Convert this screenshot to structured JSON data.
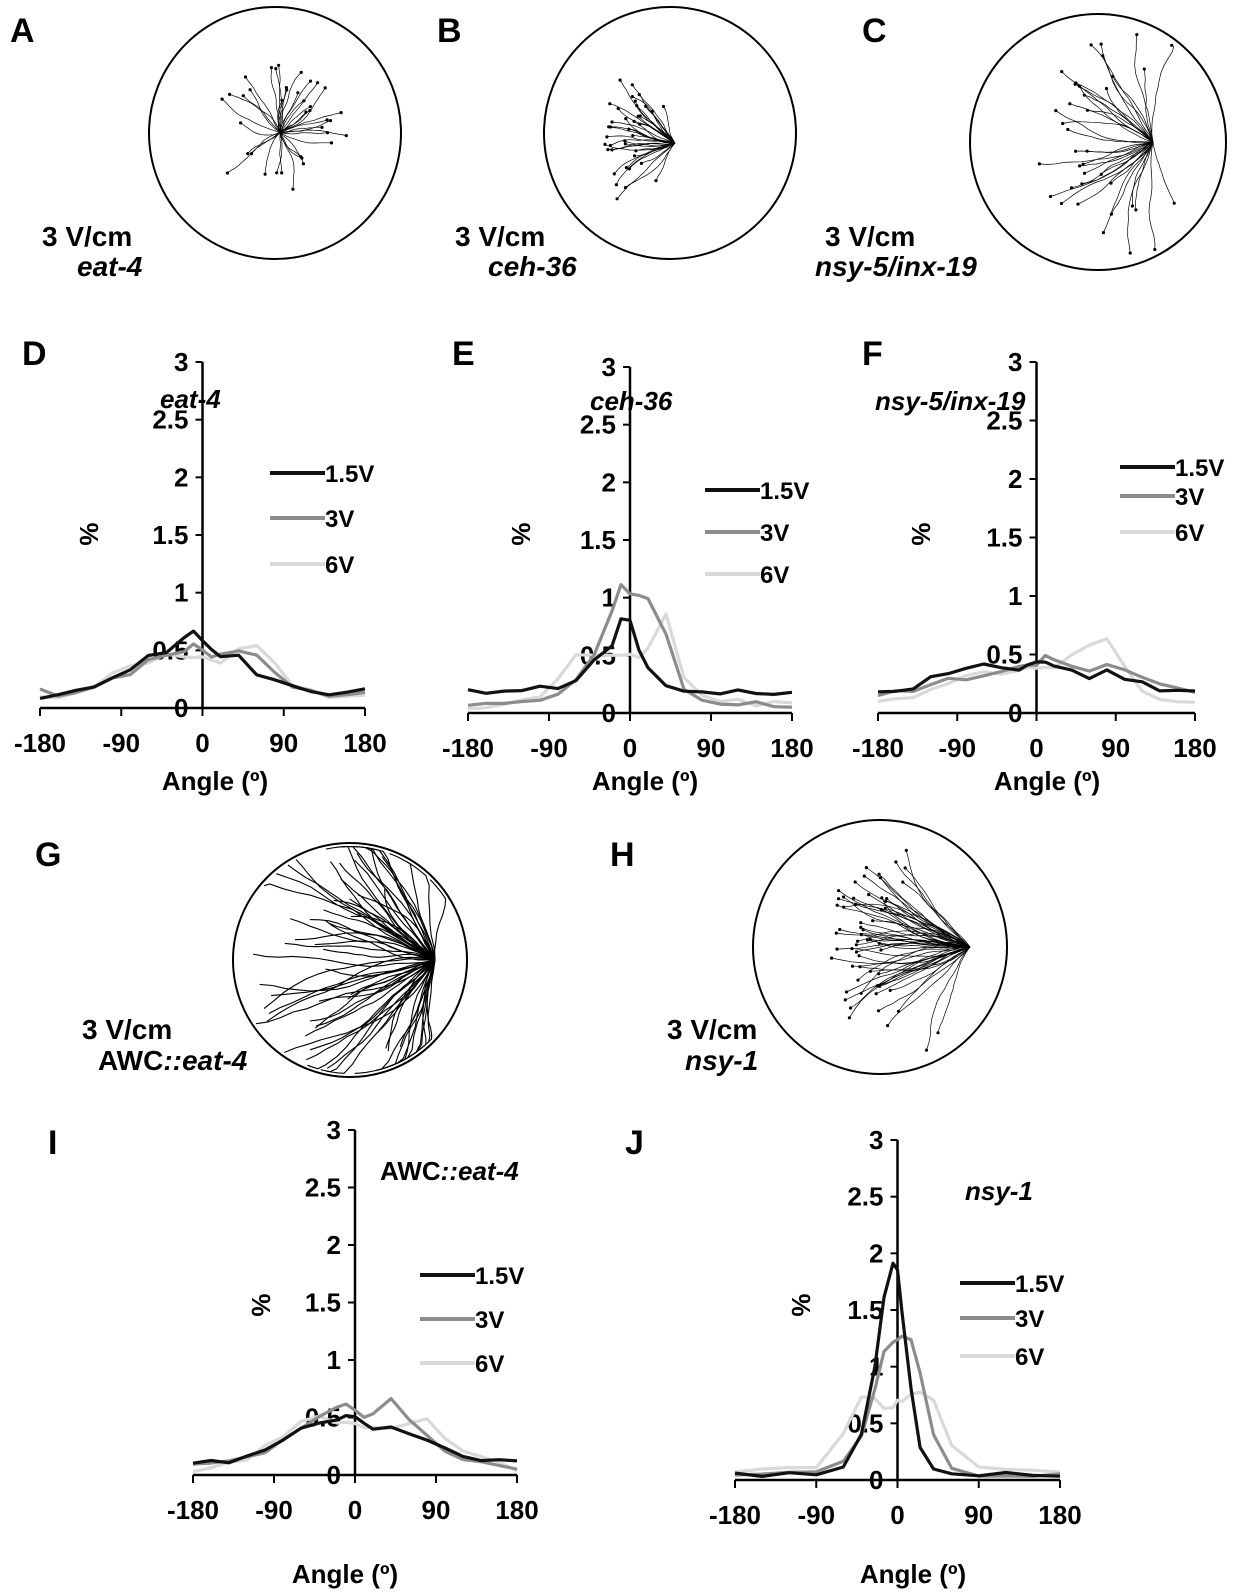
{
  "figure": {
    "panel_labels": [
      "A",
      "B",
      "C",
      "D",
      "E",
      "F",
      "G",
      "H",
      "I",
      "J"
    ],
    "track_panels": [
      {
        "label": "A",
        "field": "3 V/cm",
        "strain": "eat-4",
        "strain_prefix": ""
      },
      {
        "label": "B",
        "field": "3 V/cm",
        "strain": "ceh-36",
        "strain_prefix": ""
      },
      {
        "label": "C",
        "field": "3 V/cm",
        "strain": "nsy-5/inx-19",
        "strain_prefix": ""
      },
      {
        "label": "G",
        "field": "3 V/cm",
        "strain": "::eat-4",
        "strain_prefix": "AWC"
      },
      {
        "label": "H",
        "field": "3 V/cm",
        "strain": "nsy-1",
        "strain_prefix": ""
      }
    ]
  },
  "colors": {
    "1.5V": "#111111",
    "3V": "#8c8c8c",
    "6V": "#d9d9d9"
  },
  "chart_data": [
    {
      "panel": "D",
      "type": "line",
      "title": "eat-4",
      "title_prefix": "",
      "xlabel": "Angle (º)",
      "ylabel": "%",
      "xticks": [
        "-180",
        "-90",
        "0",
        "90",
        "180"
      ],
      "yticks": [
        "0",
        "0.5",
        "1",
        "1.5",
        "2",
        "2.5",
        "3"
      ],
      "xlim": [
        -180,
        180
      ],
      "ylim": [
        0,
        3
      ],
      "grid": false,
      "x": [
        -180,
        -160,
        -140,
        -120,
        -100,
        -80,
        -60,
        -40,
        -20,
        -10,
        0,
        10,
        20,
        40,
        60,
        80,
        100,
        120,
        140,
        160,
        180
      ],
      "series": [
        {
          "name": "1.5V",
          "values": [
            0.1,
            0.1,
            0.15,
            0.2,
            0.25,
            0.35,
            0.45,
            0.5,
            0.6,
            0.68,
            0.6,
            0.5,
            0.45,
            0.45,
            0.3,
            0.25,
            0.2,
            0.15,
            0.12,
            0.12,
            0.15
          ]
        },
        {
          "name": "3V",
          "values": [
            0.15,
            0.12,
            0.15,
            0.2,
            0.25,
            0.3,
            0.4,
            0.45,
            0.5,
            0.55,
            0.5,
            0.45,
            0.45,
            0.5,
            0.45,
            0.3,
            0.2,
            0.15,
            0.12,
            0.12,
            0.12
          ]
        },
        {
          "name": "6V",
          "values": [
            0.08,
            0.1,
            0.12,
            0.2,
            0.3,
            0.35,
            0.4,
            0.45,
            0.45,
            0.42,
            0.45,
            0.4,
            0.4,
            0.5,
            0.55,
            0.4,
            0.2,
            0.15,
            0.1,
            0.1,
            0.1
          ]
        }
      ]
    },
    {
      "panel": "E",
      "type": "line",
      "title": "ceh-36",
      "title_prefix": "",
      "xlabel": "Angle (º)",
      "ylabel": "%",
      "xticks": [
        "-180",
        "-90",
        "0",
        "90",
        "180"
      ],
      "yticks": [
        "0",
        "0.5",
        "1",
        "1.5",
        "2",
        "2.5",
        "3"
      ],
      "xlim": [
        -180,
        180
      ],
      "ylim": [
        0,
        3
      ],
      "grid": false,
      "x": [
        -180,
        -160,
        -140,
        -120,
        -100,
        -80,
        -60,
        -40,
        -20,
        -10,
        0,
        10,
        20,
        40,
        60,
        80,
        100,
        120,
        140,
        160,
        180
      ],
      "series": [
        {
          "name": "1.5V",
          "values": [
            0.2,
            0.18,
            0.2,
            0.2,
            0.22,
            0.22,
            0.3,
            0.45,
            0.6,
            0.8,
            0.8,
            0.55,
            0.4,
            0.25,
            0.2,
            0.2,
            0.18,
            0.2,
            0.18,
            0.18,
            0.18
          ]
        },
        {
          "name": "3V",
          "values": [
            0.08,
            0.08,
            0.1,
            0.1,
            0.12,
            0.15,
            0.3,
            0.5,
            0.9,
            1.12,
            1.05,
            1.0,
            1.0,
            0.7,
            0.2,
            0.1,
            0.08,
            0.08,
            0.08,
            0.05,
            0.05
          ]
        },
        {
          "name": "6V",
          "values": [
            0.05,
            0.05,
            0.08,
            0.1,
            0.15,
            0.3,
            0.5,
            0.5,
            0.5,
            0.52,
            0.5,
            0.5,
            0.55,
            0.85,
            0.3,
            0.15,
            0.1,
            0.1,
            0.08,
            0.08,
            0.08
          ]
        }
      ]
    },
    {
      "panel": "F",
      "type": "line",
      "title": "nsy-5/inx-19",
      "title_prefix": "",
      "xlabel": "Angle (º)",
      "ylabel": "%",
      "xticks": [
        "-180",
        "-90",
        "0",
        "90",
        "180"
      ],
      "yticks": [
        "0",
        "0.5",
        "1",
        "1.5",
        "2",
        "2.5",
        "3"
      ],
      "xlim": [
        -180,
        180
      ],
      "ylim": [
        0,
        3
      ],
      "grid": false,
      "x": [
        -180,
        -160,
        -140,
        -120,
        -100,
        -80,
        -60,
        -40,
        -20,
        -10,
        0,
        10,
        20,
        40,
        60,
        80,
        100,
        120,
        140,
        160,
        180
      ],
      "series": [
        {
          "name": "1.5V",
          "values": [
            0.2,
            0.2,
            0.22,
            0.3,
            0.35,
            0.4,
            0.42,
            0.4,
            0.35,
            0.4,
            0.45,
            0.45,
            0.4,
            0.35,
            0.3,
            0.35,
            0.3,
            0.25,
            0.2,
            0.2,
            0.2
          ]
        },
        {
          "name": "3V",
          "values": [
            0.15,
            0.18,
            0.2,
            0.25,
            0.3,
            0.3,
            0.3,
            0.35,
            0.38,
            0.42,
            0.4,
            0.5,
            0.45,
            0.4,
            0.35,
            0.4,
            0.35,
            0.3,
            0.25,
            0.2,
            0.18
          ]
        },
        {
          "name": "6V",
          "values": [
            0.1,
            0.12,
            0.15,
            0.2,
            0.25,
            0.32,
            0.35,
            0.35,
            0.38,
            0.4,
            0.38,
            0.38,
            0.4,
            0.5,
            0.6,
            0.62,
            0.4,
            0.2,
            0.12,
            0.1,
            0.1
          ]
        }
      ]
    },
    {
      "panel": "I",
      "type": "line",
      "title": "::eat-4",
      "title_prefix": "AWC",
      "xlabel": "Angle (º)",
      "ylabel": "%",
      "xticks": [
        "-180",
        "-90",
        "0",
        "90",
        "180"
      ],
      "yticks": [
        "0",
        "0.5",
        "1",
        "1.5",
        "2",
        "2.5",
        "3"
      ],
      "xlim": [
        -180,
        180
      ],
      "ylim": [
        0,
        3
      ],
      "grid": false,
      "x": [
        -180,
        -160,
        -140,
        -120,
        -100,
        -80,
        -60,
        -40,
        -20,
        -10,
        0,
        10,
        20,
        40,
        60,
        80,
        100,
        120,
        140,
        160,
        180
      ],
      "series": [
        {
          "name": "1.5V",
          "values": [
            0.12,
            0.12,
            0.12,
            0.15,
            0.2,
            0.3,
            0.4,
            0.45,
            0.48,
            0.5,
            0.5,
            0.45,
            0.4,
            0.4,
            0.35,
            0.3,
            0.25,
            0.18,
            0.12,
            0.12,
            0.12
          ]
        },
        {
          "name": "3V",
          "values": [
            0.08,
            0.1,
            0.12,
            0.15,
            0.2,
            0.3,
            0.4,
            0.5,
            0.6,
            0.62,
            0.55,
            0.5,
            0.55,
            0.65,
            0.5,
            0.35,
            0.2,
            0.12,
            0.1,
            0.08,
            0.05
          ]
        },
        {
          "name": "6V",
          "values": [
            0.05,
            0.05,
            0.1,
            0.15,
            0.25,
            0.35,
            0.45,
            0.5,
            0.45,
            0.45,
            0.45,
            0.4,
            0.4,
            0.4,
            0.45,
            0.5,
            0.3,
            0.2,
            0.15,
            0.1,
            0.05
          ]
        }
      ]
    },
    {
      "panel": "J",
      "type": "line",
      "title": "nsy-1",
      "title_prefix": "",
      "xlabel": "Angle (º)",
      "ylabel": "%",
      "xticks": [
        "-180",
        "-90",
        "0",
        "90",
        "180"
      ],
      "yticks": [
        "0",
        "0.5",
        "1",
        "1.5",
        "2",
        "2.5",
        "3"
      ],
      "xlim": [
        -180,
        180
      ],
      "ylim": [
        0,
        3
      ],
      "grid": false,
      "x": [
        -180,
        -150,
        -120,
        -90,
        -60,
        -40,
        -25,
        -15,
        -5,
        0,
        5,
        15,
        25,
        40,
        60,
        90,
        120,
        150,
        180
      ],
      "series": [
        {
          "name": "1.5V",
          "values": [
            0.05,
            0.05,
            0.05,
            0.05,
            0.1,
            0.4,
            1.0,
            1.6,
            1.9,
            1.85,
            1.5,
            0.8,
            0.3,
            0.1,
            0.05,
            0.05,
            0.05,
            0.05,
            0.05
          ]
        },
        {
          "name": "3V",
          "values": [
            0.05,
            0.05,
            0.05,
            0.08,
            0.15,
            0.4,
            0.8,
            1.15,
            1.2,
            1.22,
            1.25,
            1.25,
            0.95,
            0.4,
            0.1,
            0.05,
            0.05,
            0.05,
            0.05
          ]
        },
        {
          "name": "6V",
          "values": [
            0.08,
            0.08,
            0.1,
            0.12,
            0.4,
            0.75,
            0.7,
            0.65,
            0.65,
            0.7,
            0.7,
            0.75,
            0.78,
            0.7,
            0.3,
            0.1,
            0.08,
            0.08,
            0.08
          ]
        }
      ]
    }
  ]
}
